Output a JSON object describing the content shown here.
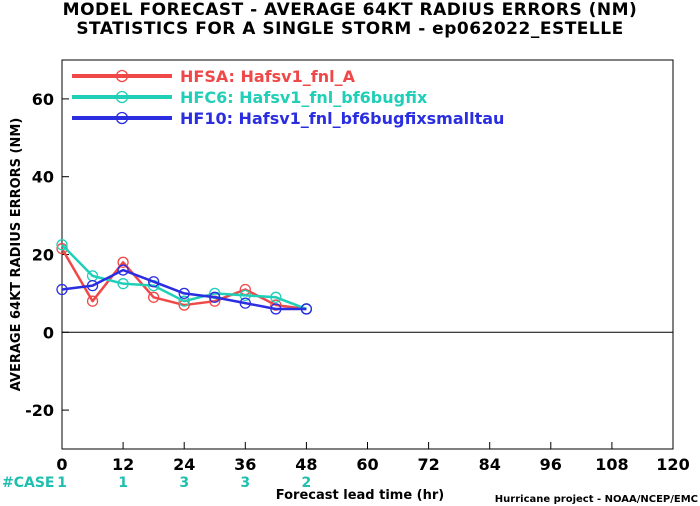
{
  "chart_data": {
    "type": "line",
    "title": "MODEL FORECAST - AVERAGE 64KT RADIUS ERRORS (NM)",
    "subtitle": "STATISTICS FOR A SINGLE STORM - ep062022_ESTELLE",
    "xlabel": "Forecast lead time (hr)",
    "ylabel": "AVERAGE 64KT RADIUS ERRORS (NM)",
    "xlim": [
      0,
      120
    ],
    "ylim": [
      -30,
      70
    ],
    "xticks": [
      0,
      12,
      24,
      36,
      48,
      60,
      72,
      84,
      96,
      108,
      120
    ],
    "yticks": [
      -20,
      0,
      20,
      40,
      60
    ],
    "zero_line": true,
    "legend_position": "top-left",
    "case_label": "#CASE",
    "cases": [
      {
        "x": 0,
        "n": "1"
      },
      {
        "x": 12,
        "n": "1"
      },
      {
        "x": 24,
        "n": "3"
      },
      {
        "x": 36,
        "n": "3"
      },
      {
        "x": 48,
        "n": "2"
      }
    ],
    "series": [
      {
        "name": "HFSA: Hafsv1_fnl_A",
        "color": "#f04848",
        "x": [
          0,
          6,
          12,
          18,
          24,
          30,
          36,
          42,
          48
        ],
        "y": [
          21.5,
          8,
          18,
          9,
          7,
          8,
          11,
          7,
          6
        ]
      },
      {
        "name": "HFC6: Hafsv1_fnl_bf6bugfix",
        "color": "#1fcfb8",
        "x": [
          0,
          6,
          12,
          18,
          24,
          30,
          36,
          42,
          48
        ],
        "y": [
          22.5,
          14.5,
          12.5,
          12,
          8,
          10,
          9.5,
          9,
          6
        ]
      },
      {
        "name": "HF10: Hafsv1_fnl_bf6bugfixsmalltau",
        "color": "#2a2ee0",
        "x": [
          0,
          6,
          12,
          18,
          24,
          30,
          36,
          42,
          48
        ],
        "y": [
          11,
          12,
          16,
          13,
          10,
          9,
          7.5,
          6,
          6
        ]
      }
    ]
  },
  "credit": "Hurricane project - NOAA/NCEP/EMC"
}
